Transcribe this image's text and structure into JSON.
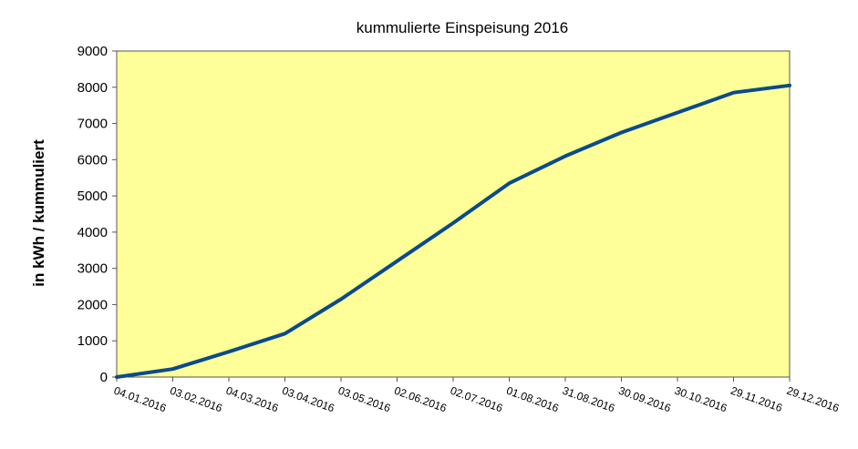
{
  "chart_data": {
    "type": "line",
    "title": "kummulierte Einspeisung 2016",
    "xlabel": "",
    "ylabel": "in kWh / kummuliert",
    "ylim": [
      0,
      9000
    ],
    "yticks": [
      0,
      1000,
      2000,
      3000,
      4000,
      5000,
      6000,
      7000,
      8000,
      9000
    ],
    "xlim": [
      "04.01.2016",
      "29.12.2016"
    ],
    "xticks": [
      "04.01.2016",
      "03.02.2016",
      "04.03.2016",
      "03.04.2016",
      "03.05.2016",
      "02.06.2016",
      "02.07.2016",
      "01.08.2016",
      "31.08.2016",
      "30.09.2016",
      "30.10.2016",
      "29.11.2016",
      "29.12.2016"
    ],
    "grid": false,
    "legend": "none",
    "colors": {
      "plot_background": "#FFFF99",
      "line": "#0B4A8B"
    },
    "series": [
      {
        "x": [
          "04.01.2016",
          "03.02.2016",
          "04.03.2016",
          "03.04.2016",
          "03.05.2016",
          "02.06.2016",
          "02.07.2016",
          "01.08.2016",
          "31.08.2016",
          "30.09.2016",
          "30.10.2016",
          "29.11.2016",
          "29.12.2016"
        ],
        "values": [
          0,
          220,
          700,
          1200,
          2150,
          3200,
          4250,
          5350,
          6100,
          6750,
          7300,
          7850,
          8050
        ]
      }
    ]
  }
}
